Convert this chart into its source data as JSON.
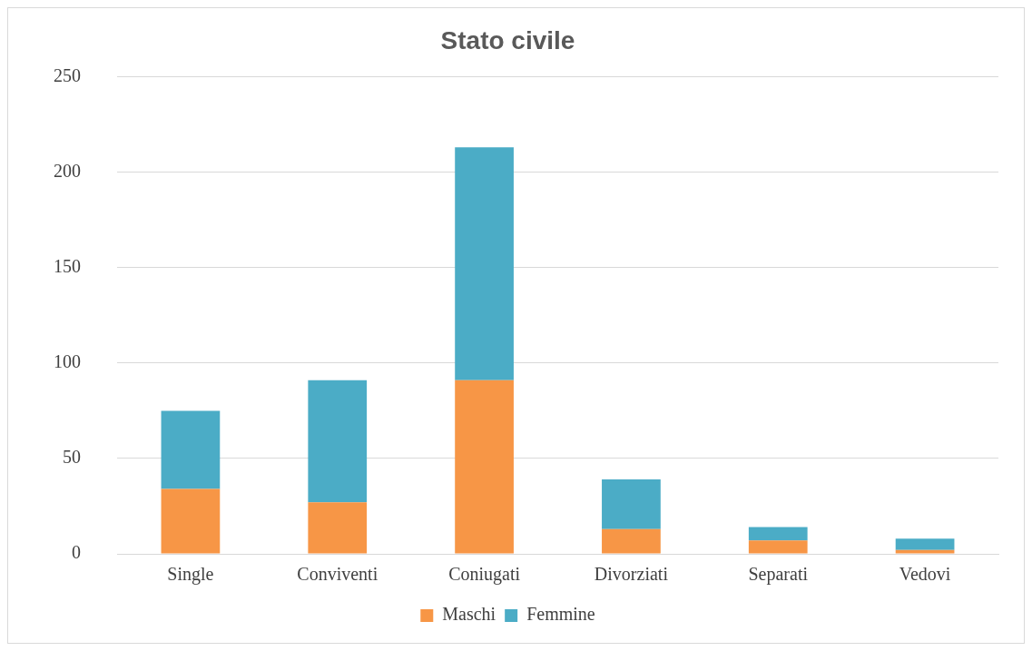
{
  "chart_data": {
    "type": "bar",
    "title": "Stato civile",
    "categories": [
      "Single",
      "Conviventi",
      "Coniugati",
      "Divorziati",
      "Separati",
      "Vedovi"
    ],
    "series": [
      {
        "name": "Maschi",
        "color": "#f79646",
        "values": [
          34,
          27,
          91,
          13,
          7,
          2
        ]
      },
      {
        "name": "Femmine",
        "color": "#4bacc6",
        "values": [
          41,
          64,
          122,
          26,
          7,
          6
        ]
      }
    ],
    "stacked": true,
    "ylim": [
      0,
      250
    ],
    "yticks": [
      0,
      50,
      100,
      150,
      200,
      250
    ],
    "grid": "y",
    "legend": "bottom"
  }
}
